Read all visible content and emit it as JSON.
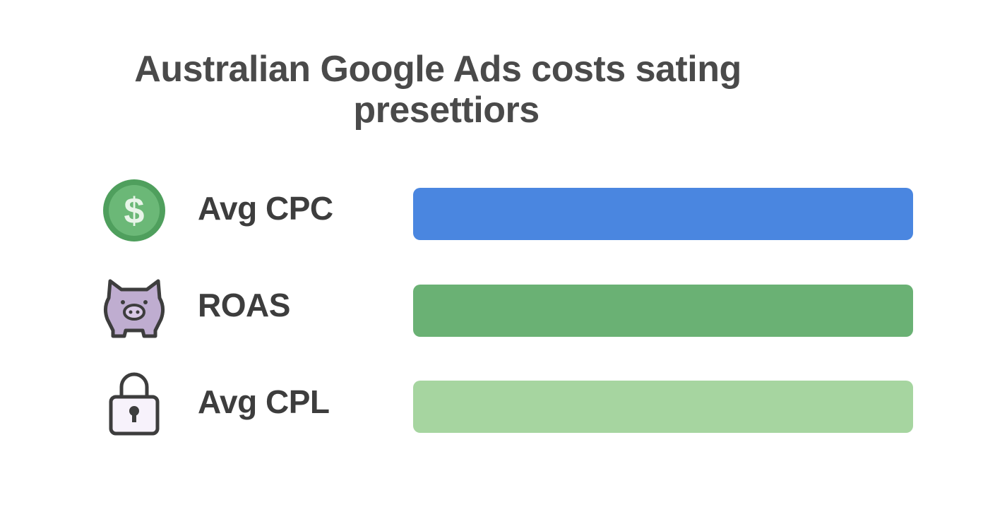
{
  "title": [
    "Australian Google Ads costs sating",
    "presettiors"
  ],
  "rows": [
    {
      "label": "Avg CPC"
    },
    {
      "label": "ROAS"
    },
    {
      "label": "Avg CPL"
    }
  ]
}
